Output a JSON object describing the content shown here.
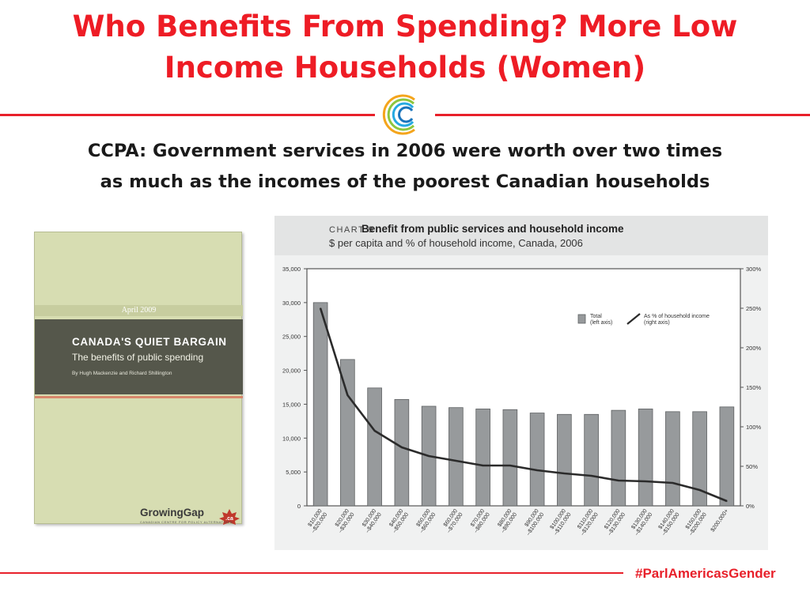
{
  "slide": {
    "title_line1": "Who Benefits From Spending? More Low",
    "title_line2": "Income Households (Women)",
    "subtitle_line1": "CCPA: Government services in 2006 were worth over two times",
    "subtitle_line2": "as much as the incomes of the poorest Canadian households",
    "hashtag": "#ParlAmericasGender",
    "accent_color": "#e8202a"
  },
  "report_cover": {
    "date": "April 2009",
    "title": "CANADA'S QUIET BARGAIN",
    "subtitle": "The benefits of public spending",
    "authors": "By Hugh Mackenzie and Richard Shillington",
    "logo_text": "GrowingGap",
    "logo_suffix": ".ca",
    "logo_org": "CANADIAN CENTRE FOR POLICY ALTERNATIVES"
  },
  "chart_data": {
    "type": "bar",
    "kicker": "CHART 9",
    "title": "Benefit from public services and household income",
    "subtitle": "$ per capita and % of household income, Canada, 2006",
    "categories": [
      "$10,000 –$20,000",
      "$20,000 –$30,000",
      "$30,000 –$40,000",
      "$40,000 –$50,000",
      "$50,000 –$60,000",
      "$60,000 –$70,000",
      "$70,000 –$80,000",
      "$80,000 –$90,000",
      "$90,000 –$100,000",
      "$100,000 –$110,000",
      "$110,000 –$120,000",
      "$120,000 –$130,000",
      "$130,000 –$140,000",
      "$140,000 –$150,000",
      "$150,000 –$200,000",
      "$200,000+"
    ],
    "series": [
      {
        "name": "Total (left axis)",
        "type": "bar",
        "axis": "left",
        "values": [
          30000,
          21600,
          17400,
          15700,
          14700,
          14500,
          14300,
          14200,
          13700,
          13500,
          13500,
          14100,
          14300,
          13900,
          13900,
          14600
        ]
      },
      {
        "name": "As % of household income (right axis)",
        "type": "line",
        "axis": "right",
        "values": [
          250,
          140,
          95,
          74,
          63,
          57,
          51,
          51,
          45,
          41,
          38,
          32,
          31,
          29,
          20,
          6
        ]
      }
    ],
    "ylim_left": [
      0,
      35000
    ],
    "yticks_left": [
      "0",
      "5,000",
      "10,000",
      "15,000",
      "20,000",
      "25,000",
      "30,000",
      "35,000"
    ],
    "ylim_right": [
      0,
      300
    ],
    "yticks_right": [
      "0%",
      "50%",
      "100%",
      "150%",
      "200%",
      "250%",
      "300%"
    ],
    "legend_total_line1": "Total",
    "legend_total_line2": "(left axis)",
    "legend_pct_line1": "As % of household income",
    "legend_pct_line2": "(right axis)",
    "legend_position": "top-right",
    "grid": false,
    "bar_color": "#979a9c",
    "line_color": "#2b2b2b"
  }
}
